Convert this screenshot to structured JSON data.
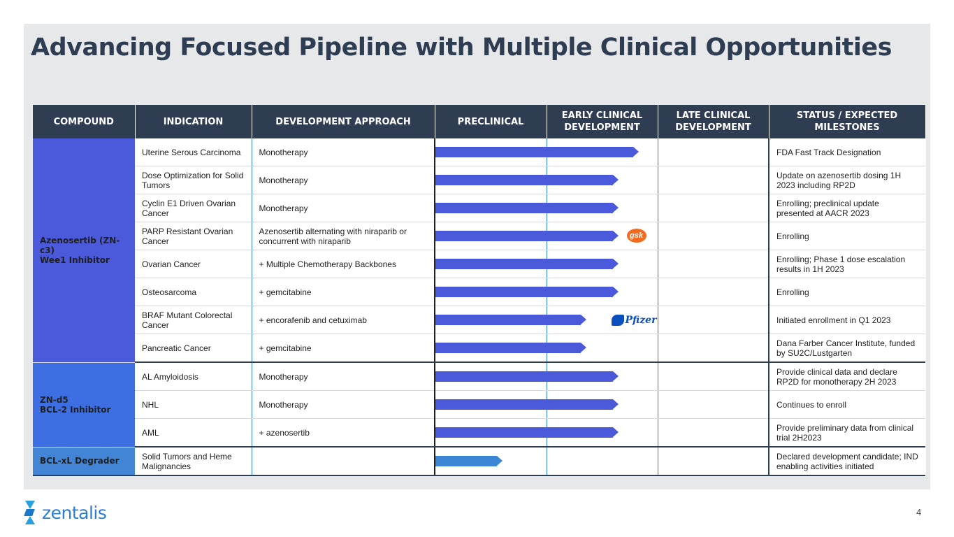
{
  "title": "Advancing Focused Pipeline with Multiple Clinical Opportunities",
  "headers": {
    "compound": "COMPOUND",
    "indication": "INDICATION",
    "approach": "DEVELOPMENT APPROACH",
    "preclinical": "PRECLINICAL",
    "early_line1": "EARLY CLINICAL",
    "early_line2": "DEVELOPMENT",
    "late_line1": "LATE CLINICAL",
    "late_line2": "DEVELOPMENT",
    "status_line1": "STATUS / EXPECTED",
    "status_line2": "MILESTONES"
  },
  "compounds": [
    {
      "line1": "Azenosertib (ZN-c3)",
      "line2": "Wee1 Inhibitor"
    },
    {
      "line1": "ZN-d5",
      "line2": "BCL-2 Inhibitor"
    },
    {
      "line1": "BCL-xL Degrader",
      "line2": ""
    }
  ],
  "colors": {
    "azenosertib": "#4a5adb",
    "zn_d5": "#3d6fe3",
    "bclxl": "#4284d6",
    "header": "#2f3d52"
  },
  "stage_scale": "progress bar length expressed in stages (0-3: preclinical, early clinical, late clinical)",
  "rows": [
    {
      "indication": "Uterine Serous Carcinoma",
      "approach": "Monotherapy",
      "stage_progress": 1.82,
      "partner": "",
      "status": "FDA Fast Track Designation"
    },
    {
      "indication": "Dose Optimization for Solid Tumors",
      "approach": "Monotherapy",
      "stage_progress": 1.64,
      "partner": "",
      "status": "Update on azenosertib dosing 1H 2023 including RP2D"
    },
    {
      "indication": "Cyclin E1 Driven Ovarian Cancer",
      "approach": "Monotherapy",
      "stage_progress": 1.64,
      "partner": "",
      "status": "Enrolling; preclinical update presented at AACR 2023"
    },
    {
      "indication": "PARP Resistant Ovarian Cancer",
      "approach": "Azenosertib alternating with niraparib or concurrent with niraparib",
      "stage_progress": 1.64,
      "partner": "gsk",
      "status": "Enrolling"
    },
    {
      "indication": "Ovarian Cancer",
      "approach": "+ Multiple Chemotherapy Backbones",
      "stage_progress": 1.64,
      "partner": "",
      "status": "Enrolling; Phase 1 dose escalation results in 1H 2023"
    },
    {
      "indication": "Osteosarcoma",
      "approach": "+ gemcitabine",
      "stage_progress": 1.64,
      "partner": "",
      "status": "Enrolling"
    },
    {
      "indication": "BRAF Mutant Colorectal Cancer",
      "approach": "+ encorafenib and cetuximab",
      "stage_progress": 1.35,
      "partner": "Pfizer",
      "status": "Initiated enrollment in Q1 2023"
    },
    {
      "indication": "Pancreatic Cancer",
      "approach": "+ gemcitabine",
      "stage_progress": 1.35,
      "partner": "",
      "status": "Dana Farber Cancer Institute, funded by SU2C/Lustgarten"
    },
    {
      "indication": "AL Amyloidosis",
      "approach": "Monotherapy",
      "stage_progress": 1.64,
      "partner": "",
      "status": "Provide clinical data and declare RP2D  for monotherapy 2H 2023"
    },
    {
      "indication": "NHL",
      "approach": "Monotherapy",
      "stage_progress": 1.64,
      "partner": "",
      "status": "Continues to enroll"
    },
    {
      "indication": "AML",
      "approach": "+ azenosertib",
      "stage_progress": 1.64,
      "partner": "",
      "status": "Provide preliminary data from clinical trial 2H2023"
    },
    {
      "indication": "Solid Tumors and Heme Malignancies",
      "approach": "",
      "stage_progress": 0.6,
      "partner": "",
      "status": "Declared development candidate; IND enabling activities initiated"
    }
  ],
  "footer": {
    "logo_text": "zentalis",
    "page_number": "4"
  }
}
